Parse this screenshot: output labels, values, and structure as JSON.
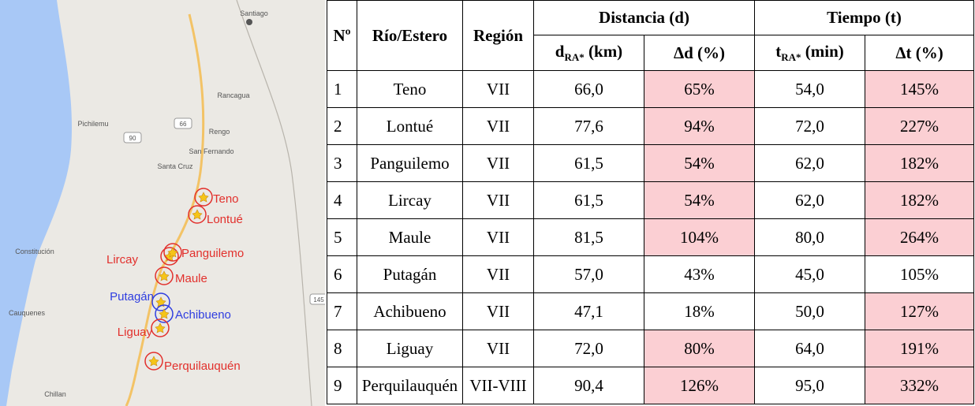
{
  "map": {
    "cities": [
      "Santiago",
      "Rancagua",
      "Pichilemu",
      "Rengo",
      "San Fernando",
      "Santa Cruz",
      "Constitución",
      "Cauquenes",
      "Chillan"
    ],
    "roads": [
      "66",
      "90",
      "145"
    ],
    "rivers": [
      {
        "label": "Teno",
        "color": "#e2302c"
      },
      {
        "label": "Lontué",
        "color": "#e2302c"
      },
      {
        "label": "Lircay",
        "color": "#e2302c"
      },
      {
        "label": "Panguilemo",
        "color": "#e2302c"
      },
      {
        "label": "Maule",
        "color": "#e2302c"
      },
      {
        "label": "Putagán",
        "color": "#2f3ee0"
      },
      {
        "label": "Achibueno",
        "color": "#2f3ee0"
      },
      {
        "label": "Liguay",
        "color": "#e2302c"
      },
      {
        "label": "Perquilauquén",
        "color": "#e2302c"
      }
    ]
  },
  "table": {
    "header": {
      "n": "Nº",
      "river": "Río/Estero",
      "region": "Región",
      "distance": "Distancia (d)",
      "time": "Tiempo (t)",
      "d_main": "d",
      "d_sub": "RA*",
      "d_unit": "(km)",
      "dd": "Δd (%)",
      "t_main": "t",
      "t_sub": "RA*",
      "t_unit": "(min)",
      "dt": "Δt (%)"
    },
    "highlight_color": "#fbcfd3",
    "rows": [
      {
        "n": "1",
        "river": "Teno",
        "region": "VII",
        "d": "66,0",
        "dd": "65%",
        "t": "54,0",
        "dt": "145%",
        "dd_highlight": true,
        "dt_highlight": true
      },
      {
        "n": "2",
        "river": "Lontué",
        "region": "VII",
        "d": "77,6",
        "dd": "94%",
        "t": "72,0",
        "dt": "227%",
        "dd_highlight": true,
        "dt_highlight": true
      },
      {
        "n": "3",
        "river": "Panguilemo",
        "region": "VII",
        "d": "61,5",
        "dd": "54%",
        "t": "62,0",
        "dt": "182%",
        "dd_highlight": true,
        "dt_highlight": true
      },
      {
        "n": "4",
        "river": "Lircay",
        "region": "VII",
        "d": "61,5",
        "dd": "54%",
        "t": "62,0",
        "dt": "182%",
        "dd_highlight": true,
        "dt_highlight": true
      },
      {
        "n": "5",
        "river": "Maule",
        "region": "VII",
        "d": "81,5",
        "dd": "104%",
        "t": "80,0",
        "dt": "264%",
        "dd_highlight": true,
        "dt_highlight": true
      },
      {
        "n": "6",
        "river": "Putagán",
        "region": "VII",
        "d": "57,0",
        "dd": "43%",
        "t": "45,0",
        "dt": "105%",
        "dd_highlight": false,
        "dt_highlight": false
      },
      {
        "n": "7",
        "river": "Achibueno",
        "region": "VII",
        "d": "47,1",
        "dd": "18%",
        "t": "50,0",
        "dt": "127%",
        "dd_highlight": false,
        "dt_highlight": true
      },
      {
        "n": "8",
        "river": "Liguay",
        "region": "VII",
        "d": "72,0",
        "dd": "80%",
        "t": "64,0",
        "dt": "191%",
        "dd_highlight": true,
        "dt_highlight": true
      },
      {
        "n": "9",
        "river": "Perquilauquén",
        "region": "VII-VIII",
        "d": "90,4",
        "dd": "126%",
        "t": "95,0",
        "dt": "332%",
        "dd_highlight": true,
        "dt_highlight": true
      }
    ]
  }
}
